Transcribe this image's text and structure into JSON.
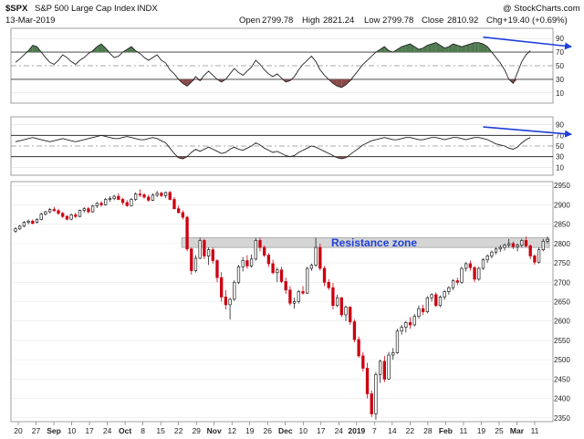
{
  "header": {
    "symbol": "$SPX",
    "name": "S&P 500 Large Cap Index",
    "exchange": "INDX",
    "date": "13-Mar-2019",
    "watermark": "@ StockCharts.com",
    "open_label": "Open",
    "open": "2799.78",
    "high_label": "High",
    "high": "2821.24",
    "low_label": "Low",
    "low": "2799.78",
    "close_label": "Close",
    "close": "2810.92",
    "chg_label": "Chg",
    "chg": "+19.40 (+0.69%)"
  },
  "colors": {
    "up_candle": "#222222",
    "down_candle": "#cc0011",
    "overbought_fill": "#4f7a4f",
    "oversold_fill": "#8a4a4a",
    "arrow": "#1e3fd8",
    "annotation_text": "#1e3fd8",
    "zone_fill": "#d5d5d5",
    "panel_line": "#222222"
  },
  "annotations": {
    "resistance_label": "Resistance zone"
  },
  "chart_data": {
    "type": "candlestick",
    "price_axis": {
      "ticks": [
        2350,
        2400,
        2450,
        2500,
        2550,
        2600,
        2650,
        2700,
        2750,
        2800,
        2850,
        2900,
        2950
      ],
      "range": [
        2340,
        2960
      ]
    },
    "resistance_zone": [
      2790,
      2815
    ],
    "x_axis_labels": [
      "20",
      "27",
      "Sep",
      "10",
      "17",
      "24",
      "Oct",
      "8",
      "15",
      "22",
      "29",
      "Nov",
      "12",
      "19",
      "26",
      "Dec",
      "10",
      "17",
      "24",
      "2019",
      "7",
      "14",
      "22",
      "28",
      "Feb",
      "11",
      "19",
      "25",
      "Mar",
      "11"
    ],
    "x_axis_bold": [
      "Sep",
      "Oct",
      "Nov",
      "Dec",
      "2019",
      "Feb",
      "Mar"
    ],
    "candles": [
      {
        "o": 2832,
        "h": 2842,
        "l": 2828,
        "c": 2838
      },
      {
        "o": 2838,
        "h": 2848,
        "l": 2835,
        "c": 2845
      },
      {
        "o": 2845,
        "h": 2858,
        "l": 2842,
        "c": 2855
      },
      {
        "o": 2855,
        "h": 2862,
        "l": 2850,
        "c": 2858
      },
      {
        "o": 2858,
        "h": 2862,
        "l": 2850,
        "c": 2852
      },
      {
        "o": 2855,
        "h": 2865,
        "l": 2852,
        "c": 2862
      },
      {
        "o": 2862,
        "h": 2880,
        "l": 2860,
        "c": 2876
      },
      {
        "o": 2876,
        "h": 2885,
        "l": 2872,
        "c": 2882
      },
      {
        "o": 2882,
        "h": 2892,
        "l": 2878,
        "c": 2888
      },
      {
        "o": 2888,
        "h": 2895,
        "l": 2882,
        "c": 2885
      },
      {
        "o": 2885,
        "h": 2890,
        "l": 2874,
        "c": 2878
      },
      {
        "o": 2878,
        "h": 2882,
        "l": 2866,
        "c": 2870
      },
      {
        "o": 2870,
        "h": 2874,
        "l": 2860,
        "c": 2863
      },
      {
        "o": 2863,
        "h": 2878,
        "l": 2860,
        "c": 2874
      },
      {
        "o": 2874,
        "h": 2880,
        "l": 2866,
        "c": 2870
      },
      {
        "o": 2870,
        "h": 2888,
        "l": 2868,
        "c": 2886
      },
      {
        "o": 2886,
        "h": 2894,
        "l": 2880,
        "c": 2890
      },
      {
        "o": 2890,
        "h": 2895,
        "l": 2878,
        "c": 2882
      },
      {
        "o": 2882,
        "h": 2900,
        "l": 2880,
        "c": 2897
      },
      {
        "o": 2897,
        "h": 2907,
        "l": 2892,
        "c": 2904
      },
      {
        "o": 2904,
        "h": 2910,
        "l": 2895,
        "c": 2900
      },
      {
        "o": 2900,
        "h": 2918,
        "l": 2898,
        "c": 2914
      },
      {
        "o": 2914,
        "h": 2922,
        "l": 2908,
        "c": 2916
      },
      {
        "o": 2916,
        "h": 2926,
        "l": 2912,
        "c": 2922
      },
      {
        "o": 2922,
        "h": 2930,
        "l": 2912,
        "c": 2914
      },
      {
        "o": 2914,
        "h": 2918,
        "l": 2900,
        "c": 2906
      },
      {
        "o": 2906,
        "h": 2912,
        "l": 2895,
        "c": 2898
      },
      {
        "o": 2898,
        "h": 2918,
        "l": 2896,
        "c": 2914
      },
      {
        "o": 2914,
        "h": 2932,
        "l": 2910,
        "c": 2928
      },
      {
        "o": 2928,
        "h": 2940,
        "l": 2920,
        "c": 2926
      },
      {
        "o": 2926,
        "h": 2930,
        "l": 2916,
        "c": 2920
      },
      {
        "o": 2920,
        "h": 2926,
        "l": 2908,
        "c": 2912
      },
      {
        "o": 2912,
        "h": 2930,
        "l": 2910,
        "c": 2925
      },
      {
        "o": 2925,
        "h": 2936,
        "l": 2920,
        "c": 2930
      },
      {
        "o": 2930,
        "h": 2934,
        "l": 2920,
        "c": 2924
      },
      {
        "o": 2924,
        "h": 2934,
        "l": 2918,
        "c": 2932
      },
      {
        "o": 2932,
        "h": 2936,
        "l": 2912,
        "c": 2914
      },
      {
        "o": 2914,
        "h": 2920,
        "l": 2888,
        "c": 2890
      },
      {
        "o": 2890,
        "h": 2898,
        "l": 2878,
        "c": 2880
      },
      {
        "o": 2880,
        "h": 2886,
        "l": 2862,
        "c": 2868
      },
      {
        "o": 2868,
        "h": 2872,
        "l": 2780,
        "c": 2786
      },
      {
        "o": 2786,
        "h": 2790,
        "l": 2720,
        "c": 2730
      },
      {
        "o": 2730,
        "h": 2770,
        "l": 2725,
        "c": 2762
      },
      {
        "o": 2762,
        "h": 2815,
        "l": 2760,
        "c": 2808
      },
      {
        "o": 2808,
        "h": 2812,
        "l": 2760,
        "c": 2768
      },
      {
        "o": 2768,
        "h": 2790,
        "l": 2745,
        "c": 2784
      },
      {
        "o": 2784,
        "h": 2790,
        "l": 2748,
        "c": 2756
      },
      {
        "o": 2756,
        "h": 2760,
        "l": 2700,
        "c": 2712
      },
      {
        "o": 2712,
        "h": 2726,
        "l": 2650,
        "c": 2662
      },
      {
        "o": 2662,
        "h": 2680,
        "l": 2630,
        "c": 2642
      },
      {
        "o": 2642,
        "h": 2660,
        "l": 2604,
        "c": 2656
      },
      {
        "o": 2656,
        "h": 2705,
        "l": 2652,
        "c": 2700
      },
      {
        "o": 2700,
        "h": 2745,
        "l": 2695,
        "c": 2740
      },
      {
        "o": 2740,
        "h": 2765,
        "l": 2728,
        "c": 2756
      },
      {
        "o": 2756,
        "h": 2770,
        "l": 2735,
        "c": 2742
      },
      {
        "o": 2742,
        "h": 2772,
        "l": 2738,
        "c": 2760
      },
      {
        "o": 2760,
        "h": 2814,
        "l": 2756,
        "c": 2808
      },
      {
        "o": 2808,
        "h": 2815,
        "l": 2780,
        "c": 2790
      },
      {
        "o": 2790,
        "h": 2795,
        "l": 2765,
        "c": 2770
      },
      {
        "o": 2770,
        "h": 2775,
        "l": 2740,
        "c": 2748
      },
      {
        "o": 2748,
        "h": 2758,
        "l": 2720,
        "c": 2725
      },
      {
        "o": 2725,
        "h": 2738,
        "l": 2700,
        "c": 2732
      },
      {
        "o": 2732,
        "h": 2740,
        "l": 2698,
        "c": 2702
      },
      {
        "o": 2702,
        "h": 2712,
        "l": 2670,
        "c": 2680
      },
      {
        "o": 2680,
        "h": 2690,
        "l": 2640,
        "c": 2646
      },
      {
        "o": 2646,
        "h": 2660,
        "l": 2632,
        "c": 2650
      },
      {
        "o": 2650,
        "h": 2680,
        "l": 2645,
        "c": 2676
      },
      {
        "o": 2676,
        "h": 2690,
        "l": 2668,
        "c": 2672
      },
      {
        "o": 2672,
        "h": 2740,
        "l": 2670,
        "c": 2736
      },
      {
        "o": 2736,
        "h": 2748,
        "l": 2730,
        "c": 2744
      },
      {
        "o": 2744,
        "h": 2815,
        "l": 2740,
        "c": 2790
      },
      {
        "o": 2790,
        "h": 2800,
        "l": 2730,
        "c": 2736
      },
      {
        "o": 2736,
        "h": 2742,
        "l": 2690,
        "c": 2700
      },
      {
        "o": 2700,
        "h": 2708,
        "l": 2680,
        "c": 2686
      },
      {
        "o": 2686,
        "h": 2698,
        "l": 2630,
        "c": 2640
      },
      {
        "o": 2640,
        "h": 2668,
        "l": 2636,
        "c": 2660
      },
      {
        "o": 2660,
        "h": 2662,
        "l": 2610,
        "c": 2616
      },
      {
        "o": 2616,
        "h": 2640,
        "l": 2600,
        "c": 2636
      },
      {
        "o": 2636,
        "h": 2638,
        "l": 2590,
        "c": 2598
      },
      {
        "o": 2598,
        "h": 2604,
        "l": 2545,
        "c": 2552
      },
      {
        "o": 2552,
        "h": 2560,
        "l": 2505,
        "c": 2510
      },
      {
        "o": 2510,
        "h": 2520,
        "l": 2470,
        "c": 2478
      },
      {
        "o": 2478,
        "h": 2492,
        "l": 2400,
        "c": 2412
      },
      {
        "o": 2412,
        "h": 2420,
        "l": 2352,
        "c": 2360
      },
      {
        "o": 2360,
        "h": 2468,
        "l": 2345,
        "c": 2462
      },
      {
        "o": 2462,
        "h": 2500,
        "l": 2440,
        "c": 2496
      },
      {
        "o": 2496,
        "h": 2510,
        "l": 2442,
        "c": 2450
      },
      {
        "o": 2450,
        "h": 2520,
        "l": 2448,
        "c": 2512
      },
      {
        "o": 2512,
        "h": 2530,
        "l": 2500,
        "c": 2518
      },
      {
        "o": 2518,
        "h": 2580,
        "l": 2515,
        "c": 2574
      },
      {
        "o": 2574,
        "h": 2590,
        "l": 2565,
        "c": 2584
      },
      {
        "o": 2584,
        "h": 2600,
        "l": 2570,
        "c": 2596
      },
      {
        "o": 2596,
        "h": 2610,
        "l": 2580,
        "c": 2590
      },
      {
        "o": 2590,
        "h": 2618,
        "l": 2586,
        "c": 2612
      },
      {
        "o": 2612,
        "h": 2640,
        "l": 2606,
        "c": 2632
      },
      {
        "o": 2632,
        "h": 2642,
        "l": 2616,
        "c": 2624
      },
      {
        "o": 2624,
        "h": 2664,
        "l": 2620,
        "c": 2660
      },
      {
        "o": 2660,
        "h": 2672,
        "l": 2650,
        "c": 2668
      },
      {
        "o": 2668,
        "h": 2674,
        "l": 2636,
        "c": 2640
      },
      {
        "o": 2640,
        "h": 2666,
        "l": 2636,
        "c": 2662
      },
      {
        "o": 2662,
        "h": 2680,
        "l": 2655,
        "c": 2676
      },
      {
        "o": 2676,
        "h": 2690,
        "l": 2668,
        "c": 2686
      },
      {
        "o": 2686,
        "h": 2708,
        "l": 2680,
        "c": 2704
      },
      {
        "o": 2704,
        "h": 2712,
        "l": 2692,
        "c": 2700
      },
      {
        "o": 2700,
        "h": 2740,
        "l": 2696,
        "c": 2736
      },
      {
        "o": 2736,
        "h": 2752,
        "l": 2728,
        "c": 2748
      },
      {
        "o": 2748,
        "h": 2756,
        "l": 2730,
        "c": 2738
      },
      {
        "o": 2738,
        "h": 2742,
        "l": 2700,
        "c": 2708
      },
      {
        "o": 2708,
        "h": 2740,
        "l": 2704,
        "c": 2736
      },
      {
        "o": 2736,
        "h": 2762,
        "l": 2732,
        "c": 2758
      },
      {
        "o": 2758,
        "h": 2772,
        "l": 2750,
        "c": 2768
      },
      {
        "o": 2768,
        "h": 2782,
        "l": 2762,
        "c": 2778
      },
      {
        "o": 2778,
        "h": 2790,
        "l": 2772,
        "c": 2786
      },
      {
        "o": 2786,
        "h": 2796,
        "l": 2778,
        "c": 2790
      },
      {
        "o": 2790,
        "h": 2800,
        "l": 2782,
        "c": 2796
      },
      {
        "o": 2796,
        "h": 2812,
        "l": 2790,
        "c": 2800
      },
      {
        "o": 2800,
        "h": 2805,
        "l": 2786,
        "c": 2792
      },
      {
        "o": 2792,
        "h": 2800,
        "l": 2780,
        "c": 2796
      },
      {
        "o": 2796,
        "h": 2812,
        "l": 2790,
        "c": 2808
      },
      {
        "o": 2808,
        "h": 2818,
        "l": 2790,
        "c": 2794
      },
      {
        "o": 2794,
        "h": 2798,
        "l": 2760,
        "c": 2768
      },
      {
        "o": 2768,
        "h": 2772,
        "l": 2745,
        "c": 2752
      },
      {
        "o": 2752,
        "h": 2790,
        "l": 2748,
        "c": 2784
      },
      {
        "o": 2784,
        "h": 2812,
        "l": 2780,
        "c": 2806
      },
      {
        "o": 2806,
        "h": 2818,
        "l": 2800,
        "c": 2811
      }
    ],
    "indicator_panels": [
      {
        "levels": [
          90,
          70,
          50,
          30,
          10
        ],
        "overbought": 70,
        "oversold": 30,
        "values": [
          55,
          60,
          66,
          72,
          80,
          78,
          70,
          62,
          55,
          52,
          58,
          66,
          62,
          56,
          52,
          58,
          62,
          68,
          72,
          78,
          82,
          76,
          68,
          62,
          64,
          70,
          74,
          78,
          72,
          68,
          62,
          58,
          62,
          66,
          58,
          54,
          44,
          38,
          30,
          24,
          20,
          26,
          34,
          28,
          36,
          42,
          36,
          30,
          26,
          30,
          38,
          46,
          40,
          36,
          42,
          48,
          58,
          52,
          44,
          38,
          34,
          38,
          32,
          26,
          28,
          34,
          44,
          52,
          58,
          64,
          56,
          44,
          36,
          30,
          24,
          20,
          18,
          22,
          28,
          36,
          44,
          52,
          58,
          64,
          70,
          74,
          78,
          72,
          70,
          74,
          78,
          80,
          82,
          78,
          74,
          76,
          80,
          82,
          84,
          80,
          76,
          78,
          82,
          80,
          78,
          80,
          82,
          84,
          84,
          82,
          78,
          70,
          62,
          54,
          44,
          30,
          24,
          40,
          56,
          66,
          72
        ],
        "arrow_to": 78
      },
      {
        "levels": [
          90,
          70,
          50,
          30,
          10
        ],
        "overbought": 70,
        "oversold": 30,
        "values": [
          58,
          60,
          62,
          64,
          66,
          64,
          62,
          60,
          58,
          60,
          62,
          64,
          62,
          60,
          58,
          60,
          62,
          64,
          66,
          68,
          70,
          68,
          66,
          64,
          64,
          66,
          68,
          66,
          64,
          62,
          62,
          64,
          66,
          64,
          60,
          56,
          46,
          36,
          28,
          26,
          30,
          38,
          44,
          40,
          44,
          48,
          44,
          40,
          36,
          38,
          44,
          48,
          44,
          42,
          46,
          50,
          56,
          52,
          46,
          42,
          38,
          40,
          36,
          32,
          30,
          32,
          38,
          42,
          46,
          50,
          48,
          44,
          40,
          36,
          32,
          28,
          26,
          28,
          34,
          40,
          46,
          52,
          56,
          60,
          62,
          64,
          66,
          64,
          62,
          62,
          64,
          66,
          66,
          64,
          62,
          62,
          64,
          66,
          66,
          64,
          62,
          64,
          66,
          66,
          64,
          62,
          64,
          66,
          66,
          64,
          62,
          58,
          54,
          52,
          50,
          46,
          44,
          48,
          56,
          62,
          66
        ],
        "arrow_to": 72
      }
    ]
  }
}
